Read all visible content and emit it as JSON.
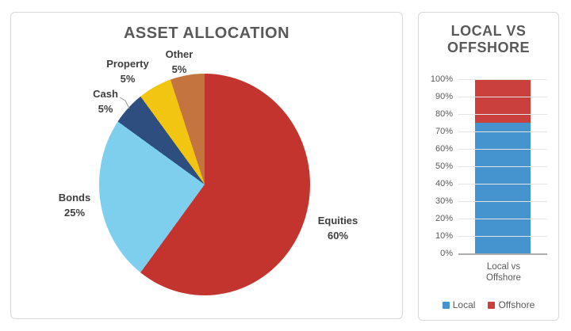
{
  "chart_data": [
    {
      "type": "pie",
      "title": "ASSET ALLOCATION",
      "categories": [
        "Equities",
        "Bonds",
        "Cash",
        "Property",
        "Other"
      ],
      "values": [
        60,
        25,
        5,
        5,
        5
      ],
      "unit": "%",
      "colors": [
        "#c4342f",
        "#7dcfed",
        "#2f4e80",
        "#f2c512",
        "#c3743f"
      ],
      "start_angle_deg": 0,
      "direction": "clockwise",
      "legend": "none",
      "labels": [
        {
          "name": "Equities",
          "pct": "60%"
        },
        {
          "name": "Bonds",
          "pct": "25%"
        },
        {
          "name": "Cash",
          "pct": "5%"
        },
        {
          "name": "Property",
          "pct": "5%"
        },
        {
          "name": "Other",
          "pct": "5%"
        }
      ]
    },
    {
      "type": "bar",
      "stacked": true,
      "title": "LOCAL VS OFFSHORE",
      "title_lines": [
        "LOCAL VS",
        "OFFSHORE"
      ],
      "categories": [
        "Local vs Offshore"
      ],
      "xlabel_lines": [
        "Local vs",
        "Offshore"
      ],
      "series": [
        {
          "name": "Local",
          "values": [
            75
          ],
          "color": "#4594d0"
        },
        {
          "name": "Offshore",
          "values": [
            25
          ],
          "color": "#ca403d"
        }
      ],
      "ylim": [
        0,
        100
      ],
      "yticks": [
        "100%",
        "90%",
        "80%",
        "70%",
        "60%",
        "50%",
        "40%",
        "30%",
        "20%",
        "10%",
        "0%"
      ],
      "grid": true,
      "legend_position": "bottom"
    }
  ],
  "style": {
    "title_color": "#595959",
    "label_color": "#3e3e3e",
    "tick_color": "#595959",
    "card_border": "#d8d8d8",
    "gridline_color": "#e4e4e4",
    "axisline_color": "#adadad"
  }
}
